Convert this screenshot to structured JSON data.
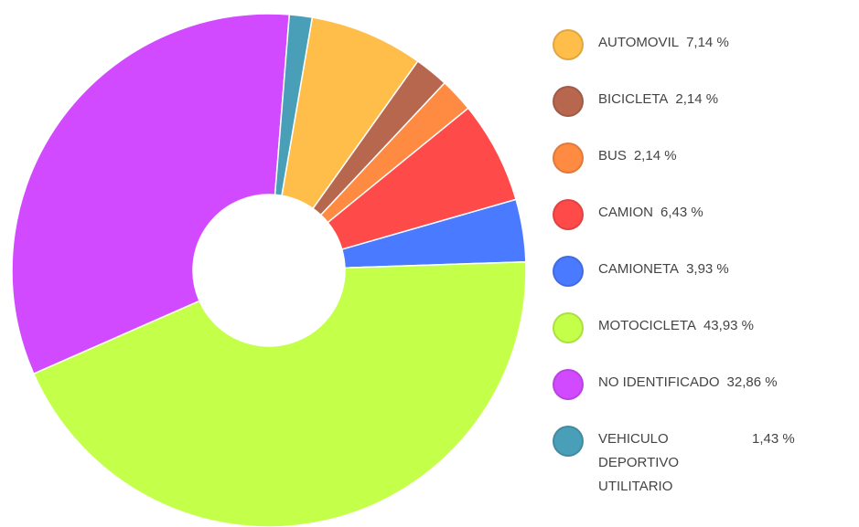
{
  "chart_data": {
    "type": "donut",
    "categories": [
      "AUTOMOVIL",
      "BICICLETA",
      "BUS",
      "CAMION",
      "CAMIONETA",
      "MOTOCICLETA",
      "NO IDENTIFICADO",
      "VEHICULO DEPORTIVO UTILITARIO"
    ],
    "values": [
      7.14,
      2.14,
      2.14,
      6.43,
      3.93,
      43.93,
      32.86,
      1.43
    ],
    "value_labels": [
      "7,14 %",
      "2,14 %",
      "2,14 %",
      "6,43 %",
      "3,93 %",
      "43,93 %",
      "32,86 %",
      "1,43 %"
    ],
    "colors": [
      "#ffbe4a",
      "#b8674f",
      "#ff8a42",
      "#ff4a4a",
      "#4a7aff",
      "#c4ff4a",
      "#d24aff",
      "#4a9fb8"
    ],
    "legend": "right"
  }
}
